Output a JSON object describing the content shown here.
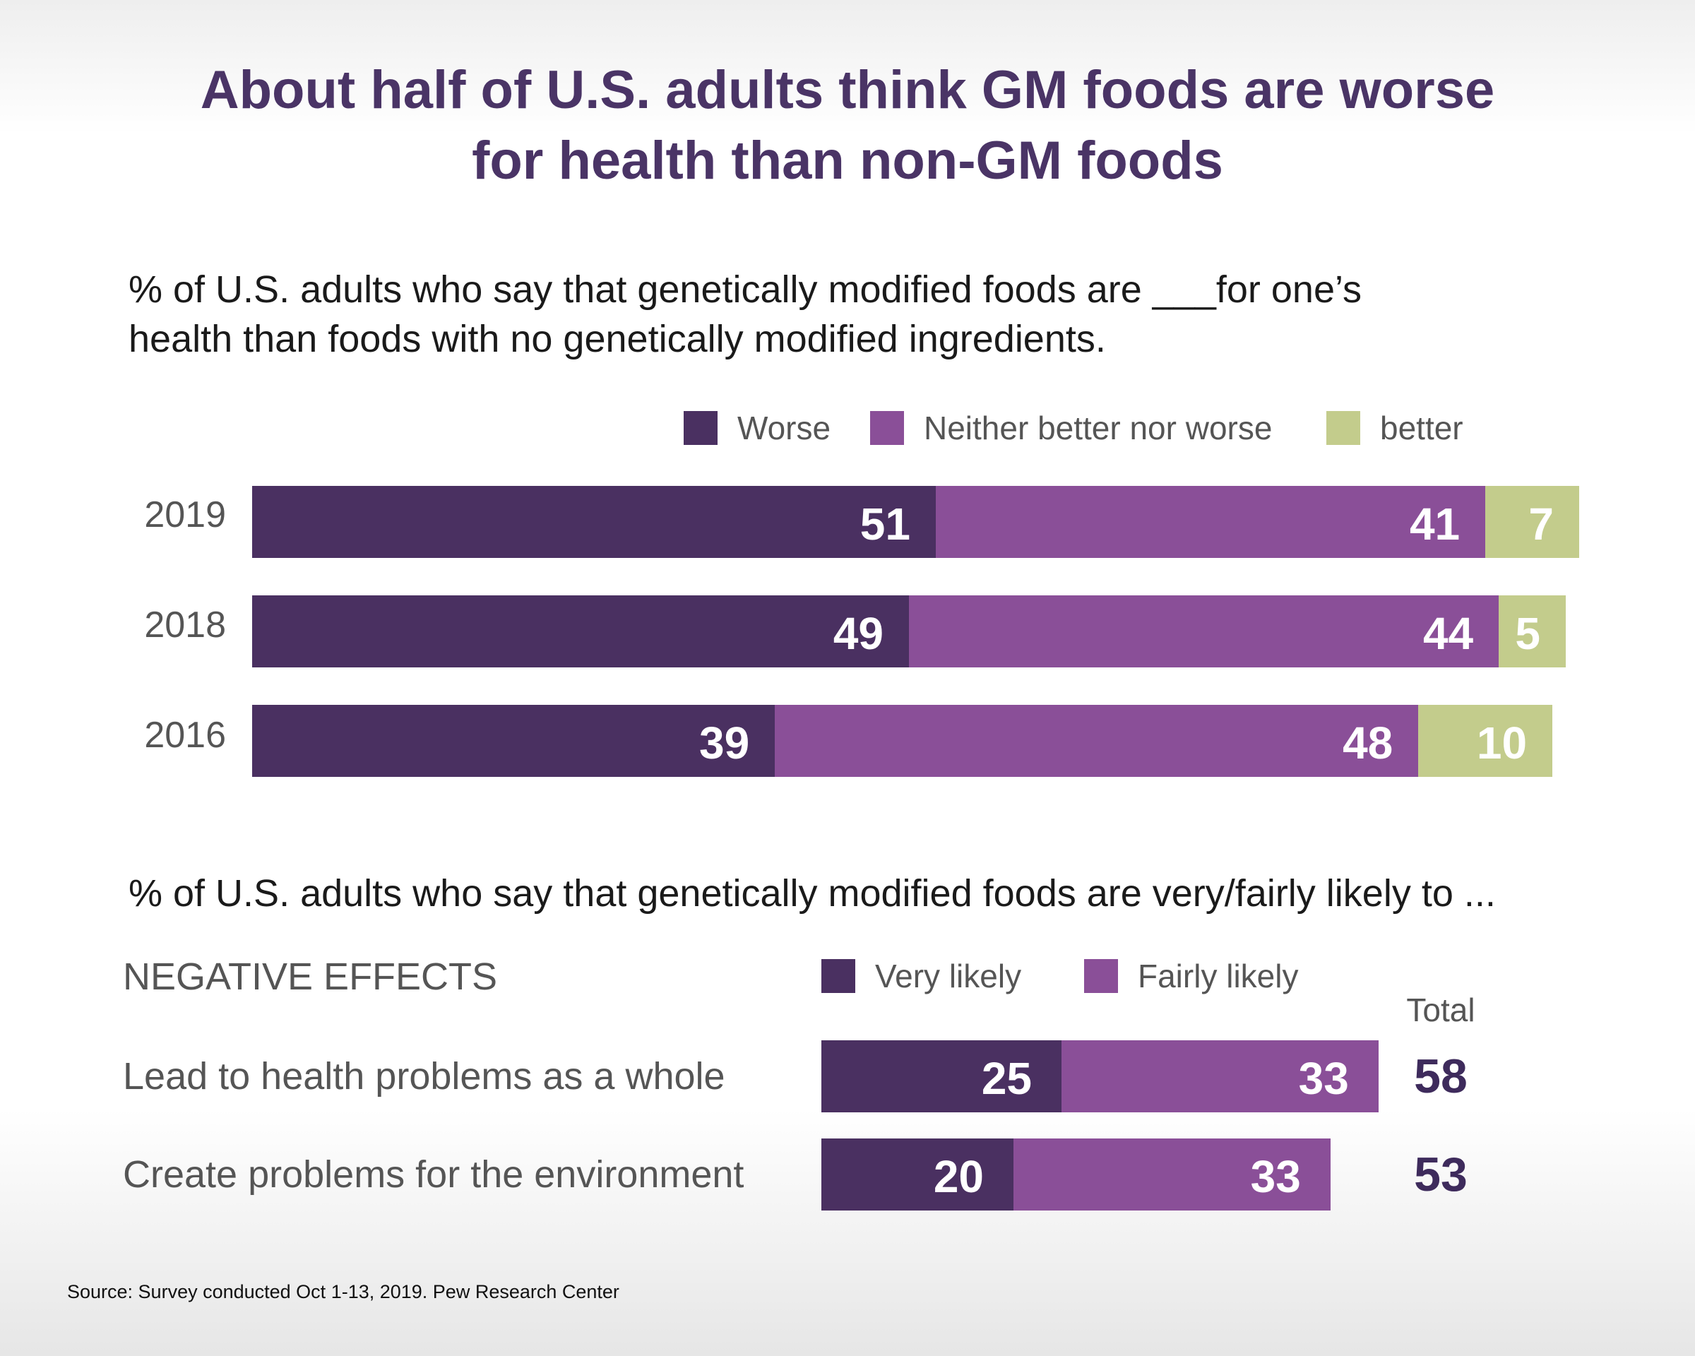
{
  "title_line1": "About half of U.S. adults think GM foods are worse",
  "title_line2": "for health than non-GM foods",
  "colors": {
    "worse": "#4a3061",
    "neither": "#8a4f98",
    "better": "#c3cc8c",
    "very_likely": "#4a3061",
    "fairly_likely": "#8a4f98"
  },
  "chart_data": [
    {
      "type": "bar",
      "orientation": "horizontal",
      "stacked": true,
      "subtitle_line1": "% of U.S. adults who say that genetically modified foods are ___for one’s",
      "subtitle_line2": "health than foods with no genetically modified ingredients.",
      "legend_position": "top-right",
      "categories": [
        "2019",
        "2018",
        "2016"
      ],
      "series": [
        {
          "name": "Worse",
          "values": [
            51,
            49,
            39
          ]
        },
        {
          "name": "Neither better nor worse",
          "values": [
            41,
            44,
            48
          ]
        },
        {
          "name": "better",
          "values": [
            7,
            5,
            10
          ]
        }
      ],
      "xlim": [
        0,
        100
      ]
    },
    {
      "type": "bar",
      "orientation": "horizontal",
      "stacked": true,
      "subtitle": "% of U.S. adults who say that genetically modified foods are very/fairly likely to ...",
      "section_label": "NEGATIVE EFFECTS",
      "legend_position": "top-right",
      "categories": [
        "Lead to health problems as a whole",
        "Create problems for the environment"
      ],
      "series": [
        {
          "name": "Very likely",
          "values": [
            25,
            20
          ]
        },
        {
          "name": "Fairly likely",
          "values": [
            33,
            33
          ]
        }
      ],
      "totals_header": "Total",
      "totals": [
        58,
        53
      ],
      "xlim": [
        0,
        100
      ]
    }
  ],
  "source": "Source: Survey conducted Oct 1-13, 2019. Pew Research Center"
}
